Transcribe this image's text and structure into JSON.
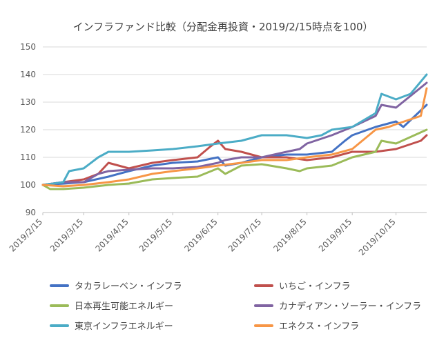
{
  "chart_data": {
    "type": "line",
    "title": "インフラファンド比較（分配金再投資・2019/2/15時点を100）",
    "ylim": [
      90,
      150
    ],
    "yticks": [
      90,
      100,
      110,
      120,
      130,
      140,
      150
    ],
    "x_start": "2019/2/15",
    "x_end": "2019/11/5",
    "xticks": [
      "2019/2/15",
      "2019/3/15",
      "2019/4/15",
      "2019/5/15",
      "2019/6/15",
      "2019/7/15",
      "2019/8/15",
      "2019/9/15",
      "2019/10/15"
    ],
    "grid": true,
    "legend_position": "bottom",
    "series": [
      {
        "name": "タカラレーベン・インフラ",
        "color": "#4472C4",
        "x": [
          "2019/2/15",
          "2019/3/1",
          "2019/3/15",
          "2019/4/1",
          "2019/4/15",
          "2019/5/1",
          "2019/5/15",
          "2019/6/1",
          "2019/6/15",
          "2019/6/20",
          "2019/7/1",
          "2019/7/15",
          "2019/8/1",
          "2019/8/15",
          "2019/9/1",
          "2019/9/10",
          "2019/9/15",
          "2019/10/1",
          "2019/10/15",
          "2019/10/20",
          "2019/11/5"
        ],
        "values": [
          100,
          100.5,
          101,
          103,
          105,
          107,
          108,
          108.5,
          110,
          107,
          108,
          110,
          111,
          111,
          112,
          116,
          118,
          121,
          123,
          121,
          129
        ]
      },
      {
        "name": "いちご・インフラ",
        "color": "#C0504D",
        "x": [
          "2019/2/15",
          "2019/3/1",
          "2019/3/15",
          "2019/3/25",
          "2019/4/1",
          "2019/4/15",
          "2019/5/1",
          "2019/5/15",
          "2019/6/1",
          "2019/6/10",
          "2019/6/15",
          "2019/6/20",
          "2019/7/1",
          "2019/7/15",
          "2019/8/1",
          "2019/8/15",
          "2019/9/1",
          "2019/9/15",
          "2019/10/1",
          "2019/10/15",
          "2019/11/1",
          "2019/11/5"
        ],
        "values": [
          100,
          101,
          102,
          104,
          108,
          106,
          108,
          109,
          110,
          114,
          116,
          113,
          112,
          110,
          110,
          109,
          110,
          112,
          112,
          113,
          116,
          118
        ]
      },
      {
        "name": "日本再生可能エネルギー",
        "color": "#9BBB59",
        "x": [
          "2019/2/15",
          "2019/2/20",
          "2019/3/1",
          "2019/3/15",
          "2019/4/1",
          "2019/4/15",
          "2019/5/1",
          "2019/5/15",
          "2019/6/1",
          "2019/6/15",
          "2019/6/20",
          "2019/7/1",
          "2019/7/15",
          "2019/8/1",
          "2019/8/10",
          "2019/8/15",
          "2019/9/1",
          "2019/9/15",
          "2019/10/1",
          "2019/10/5",
          "2019/10/15",
          "2019/11/5"
        ],
        "values": [
          100,
          98.5,
          98.5,
          99,
          100,
          100.5,
          102,
          102.5,
          103,
          106,
          104,
          107,
          107.5,
          106,
          105,
          106,
          107,
          110,
          112,
          116,
          115,
          120
        ]
      },
      {
        "name": "カナディアン・ソーラー・インフラ",
        "color": "#8064A2",
        "x": [
          "2019/2/15",
          "2019/3/1",
          "2019/3/15",
          "2019/3/25",
          "2019/4/1",
          "2019/4/15",
          "2019/5/1",
          "2019/5/15",
          "2019/6/1",
          "2019/6/15",
          "2019/6/20",
          "2019/7/1",
          "2019/7/15",
          "2019/8/1",
          "2019/8/10",
          "2019/8/15",
          "2019/9/1",
          "2019/9/15",
          "2019/10/1",
          "2019/10/5",
          "2019/10/15",
          "2019/11/5"
        ],
        "values": [
          100,
          101,
          101,
          104,
          105,
          105.5,
          106,
          106,
          106.5,
          108,
          109,
          110,
          110,
          112,
          113,
          115,
          118,
          121,
          125,
          129,
          128,
          137
        ]
      },
      {
        "name": "東京インフラエネルギー",
        "color": "#4BACC6",
        "x": [
          "2019/2/15",
          "2019/3/1",
          "2019/3/5",
          "2019/3/15",
          "2019/3/25",
          "2019/4/1",
          "2019/4/15",
          "2019/5/1",
          "2019/5/15",
          "2019/6/1",
          "2019/6/15",
          "2019/7/1",
          "2019/7/15",
          "2019/8/1",
          "2019/8/15",
          "2019/8/25",
          "2019/9/1",
          "2019/9/15",
          "2019/10/1",
          "2019/10/5",
          "2019/10/15",
          "2019/10/25",
          "2019/11/5"
        ],
        "values": [
          100,
          101,
          105,
          106,
          110,
          112,
          112,
          112.5,
          113,
          114,
          115,
          116,
          118,
          118,
          117,
          118,
          120,
          121,
          126,
          133,
          131,
          133,
          140
        ]
      },
      {
        "name": "エネクス・インフラ",
        "color": "#F79646",
        "x": [
          "2019/2/15",
          "2019/3/1",
          "2019/3/15",
          "2019/4/1",
          "2019/4/15",
          "2019/5/1",
          "2019/5/15",
          "2019/6/1",
          "2019/6/15",
          "2019/7/1",
          "2019/7/15",
          "2019/8/1",
          "2019/8/15",
          "2019/9/1",
          "2019/9/15",
          "2019/10/1",
          "2019/10/10",
          "2019/10/15",
          "2019/11/1",
          "2019/11/5"
        ],
        "values": [
          100,
          99.5,
          100,
          101,
          102,
          104,
          105,
          106,
          107,
          108,
          109,
          109,
          110,
          111,
          113,
          120,
          121,
          122,
          125,
          135
        ]
      }
    ]
  }
}
